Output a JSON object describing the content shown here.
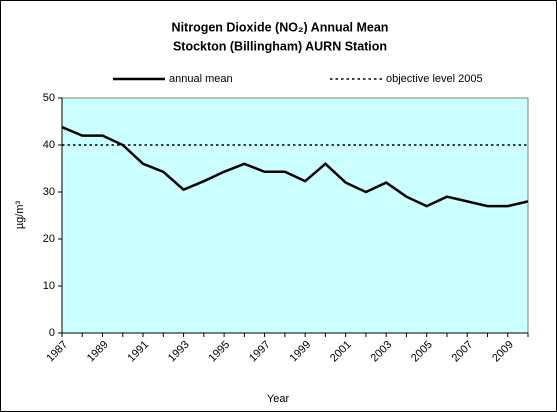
{
  "chart_data": {
    "type": "line",
    "title": [
      "Nitrogen Dioxide (NO₂) Annual Mean",
      "Stockton (Billingham) AURN Station"
    ],
    "x_label": "Year",
    "y_label": "µg/m³",
    "categories": [
      "1987",
      null,
      "1989",
      null,
      "1991",
      null,
      "1993",
      null,
      "1995",
      null,
      "1997",
      null,
      "1999",
      null,
      "2001",
      null,
      "2003",
      null,
      "2005",
      null,
      "2007",
      null,
      "2009",
      null
    ],
    "series": [
      {
        "name": "annual mean",
        "color": "#000000",
        "style": "solid",
        "values": [
          43.8,
          42,
          42,
          40,
          36,
          34.3,
          30.5,
          32.3,
          34.3,
          36,
          34.3,
          34.3,
          32.3,
          36,
          32,
          30,
          32,
          29,
          27,
          29,
          28,
          27,
          27,
          28
        ]
      },
      {
        "name": "objective level 2005",
        "color": "#000000",
        "style": "dotted",
        "values": [
          40,
          40,
          40,
          40,
          40,
          40,
          40,
          40,
          40,
          40,
          40,
          40,
          40,
          40,
          40,
          40,
          40,
          40,
          40,
          40,
          40,
          40,
          40,
          40
        ]
      }
    ],
    "ylim": [
      0,
      50
    ],
    "yticks": [
      0,
      10,
      20,
      30,
      40,
      50
    ],
    "plot_background": "#ccffff",
    "legend": "top"
  }
}
